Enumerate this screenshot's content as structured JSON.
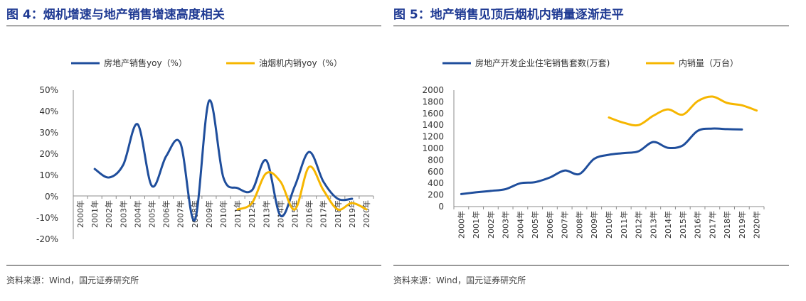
{
  "charts_text": {
    "left_title": "图 4：烟机增速与地产销售增速高度相关",
    "right_title": "图 5：地产销售见顶后烟机内销量逐渐走平",
    "left_source": "资料来源：Wind，国元证券研究所",
    "right_source": "资料来源：Wind，国元证券研究所"
  },
  "colors": {
    "blue": "#1F4E9C",
    "yellow": "#F6B600",
    "title": "#1F3A93"
  },
  "chart_data": [
    {
      "type": "line",
      "title": "图 4：烟机增速与地产销售增速高度相关",
      "categories": [
        "2000年",
        "2001年",
        "2002年",
        "2003年",
        "2004年",
        "2005年",
        "2006年",
        "2007年",
        "2008年",
        "2009年",
        "2010年",
        "2011年",
        "2012年",
        "2013年",
        "2014年",
        "2015年",
        "2016年",
        "2017年",
        "2018年",
        "2019年",
        "2020年"
      ],
      "y_ticks": [
        "50%",
        "40%",
        "30%",
        "20%",
        "10%",
        "0%",
        "-10%",
        "-20%"
      ],
      "ylim": [
        -20,
        50
      ],
      "legend_position": "top",
      "series": [
        {
          "name": "房地产销售yoy（%）",
          "color": "#1F4E9C",
          "values": [
            null,
            13,
            9,
            15,
            34,
            5,
            19,
            25,
            -11,
            45,
            9,
            4,
            3,
            17,
            -9,
            5,
            21,
            7,
            -1,
            -1,
            null
          ]
        },
        {
          "name": "油烟机内销yoy（%）",
          "color": "#F6B600",
          "values": [
            null,
            null,
            null,
            null,
            null,
            null,
            null,
            null,
            null,
            null,
            null,
            -6,
            -3,
            11,
            7,
            -6,
            14,
            3,
            -6,
            -3,
            -6
          ]
        }
      ]
    },
    {
      "type": "line",
      "title": "图 5：地产销售见顶后烟机内销量逐渐走平",
      "categories": [
        "2000年",
        "2001年",
        "2002年",
        "2003年",
        "2004年",
        "2005年",
        "2006年",
        "2007年",
        "2008年",
        "2009年",
        "2010年",
        "2011年",
        "2012年",
        "2013年",
        "2014年",
        "2015年",
        "2016年",
        "2017年",
        "2018年",
        "2019年",
        "2020年"
      ],
      "y_ticks": [
        "2000",
        "1800",
        "1600",
        "1400",
        "1200",
        "1000",
        "800",
        "600",
        "400",
        "200",
        "0"
      ],
      "ylim": [
        0,
        2000
      ],
      "legend_position": "top",
      "series": [
        {
          "name": "房地产开发企业住宅销售套数(万套)",
          "color": "#1F4E9C",
          "values": [
            215,
            245,
            270,
            300,
            400,
            420,
            500,
            620,
            560,
            820,
            890,
            920,
            950,
            1110,
            1010,
            1050,
            1300,
            1340,
            1330,
            1325,
            null
          ]
        },
        {
          "name": "内销量（万台）",
          "color": "#F6B600",
          "values": [
            null,
            null,
            null,
            null,
            null,
            null,
            null,
            null,
            null,
            null,
            1530,
            1440,
            1400,
            1560,
            1670,
            1580,
            1810,
            1890,
            1780,
            1740,
            1650
          ]
        }
      ]
    }
  ]
}
